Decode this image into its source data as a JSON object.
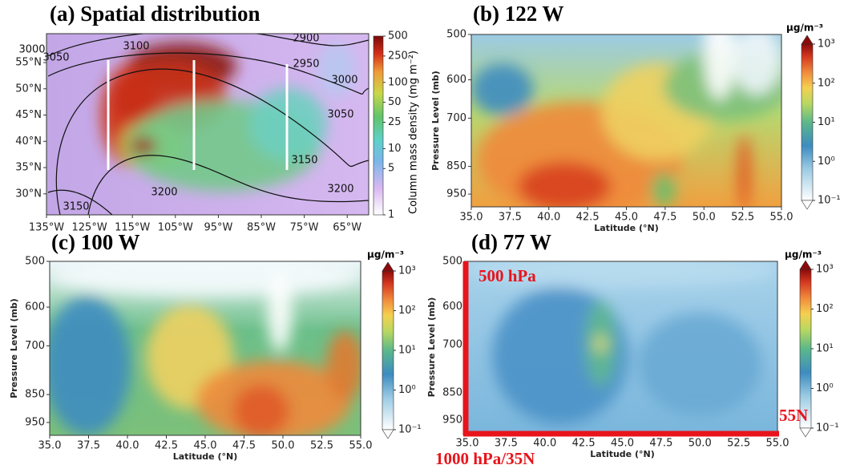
{
  "chart_data": [
    {
      "type": "map",
      "title": "(a) Spatial distribution",
      "xlim": [
        -135,
        -60
      ],
      "ylim": [
        26,
        60.5
      ],
      "xticks": [
        {
          "value": -135,
          "label": "135°W"
        },
        {
          "value": -125,
          "label": "125°W"
        },
        {
          "value": -115,
          "label": "115°W"
        },
        {
          "value": -105,
          "label": "105°W"
        },
        {
          "value": -95,
          "label": "95°W"
        },
        {
          "value": -85,
          "label": "85°W"
        },
        {
          "value": -75,
          "label": "75°W"
        },
        {
          "value": -65,
          "label": "65°W"
        }
      ],
      "yticks": [
        {
          "value": 30,
          "label": "30°N"
        },
        {
          "value": 35,
          "label": "35°N"
        },
        {
          "value": 40,
          "label": "40°N"
        },
        {
          "value": 45,
          "label": "45°N"
        },
        {
          "value": 50,
          "label": "50°N"
        },
        {
          "value": 55,
          "label": "55°N"
        }
      ],
      "colorbar": {
        "label": "Column mass density (mg m⁻²)",
        "lim": [
          1,
          500
        ],
        "log": true,
        "ticks": [
          1,
          5,
          10,
          25,
          50,
          100,
          250,
          500
        ]
      },
      "contour_labels": [
        "3100",
        "2900",
        "3000",
        "3050",
        "2950",
        "3000",
        "3050",
        "3150",
        "3200",
        "3150",
        "3200"
      ]
    },
    {
      "type": "contour",
      "title": "(b) 122 W",
      "xlabel": "Latitude (°N)",
      "ylabel": "Pressure Level (mb)",
      "xlim": [
        35,
        55
      ],
      "ylim": [
        500,
        1000
      ],
      "ylog": true,
      "xticks": [
        {
          "value": 35,
          "label": "35.0"
        },
        {
          "value": 37.5,
          "label": "37.5"
        },
        {
          "value": 40,
          "label": "40.0"
        },
        {
          "value": 42.5,
          "label": "42.5"
        },
        {
          "value": 45,
          "label": "45.0"
        },
        {
          "value": 47.5,
          "label": "47.5"
        },
        {
          "value": 50,
          "label": "50.0"
        },
        {
          "value": 52.5,
          "label": "52.5"
        },
        {
          "value": 55,
          "label": "55.0"
        }
      ],
      "yticks": [
        500,
        600,
        700,
        850,
        950
      ],
      "colorbar": {
        "unit": "μg/m⁻³",
        "lim": [
          0.1,
          1000
        ],
        "log": true,
        "ticks": [
          {
            "value": 1000,
            "label": "10³"
          },
          {
            "value": 100,
            "label": "10²"
          },
          {
            "value": 10,
            "label": "10¹"
          },
          {
            "value": 1,
            "label": "10⁰"
          },
          {
            "value": 0.1,
            "label": "10⁻¹"
          }
        ]
      }
    },
    {
      "type": "contour",
      "title": "(c) 100 W",
      "xlabel": "Latitude (°N)",
      "ylabel": "Pressure Level (mb)",
      "xlim": [
        35,
        55
      ],
      "ylim": [
        500,
        1000
      ],
      "ylog": true,
      "xticks": [
        {
          "value": 35,
          "label": "35.0"
        },
        {
          "value": 37.5,
          "label": "37.5"
        },
        {
          "value": 40,
          "label": "40.0"
        },
        {
          "value": 42.5,
          "label": "42.5"
        },
        {
          "value": 45,
          "label": "45.0"
        },
        {
          "value": 47.5,
          "label": "47.5"
        },
        {
          "value": 50,
          "label": "50.0"
        },
        {
          "value": 52.5,
          "label": "52.5"
        },
        {
          "value": 55,
          "label": "55.0"
        }
      ],
      "yticks": [
        500,
        600,
        700,
        850,
        950
      ],
      "colorbar": {
        "unit": "μg/m⁻³",
        "lim": [
          0.1,
          1000
        ],
        "log": true,
        "ticks": [
          {
            "value": 1000,
            "label": "10³"
          },
          {
            "value": 100,
            "label": "10²"
          },
          {
            "value": 10,
            "label": "10¹"
          },
          {
            "value": 1,
            "label": "10⁰"
          },
          {
            "value": 0.1,
            "label": "10⁻¹"
          }
        ]
      }
    },
    {
      "type": "contour",
      "title": "(d) 77 W",
      "xlabel": "Latitude (°N)",
      "ylabel": "Pressure Level (mb)",
      "xlim": [
        35,
        55
      ],
      "ylim": [
        500,
        1000
      ],
      "ylog": true,
      "xticks": [
        {
          "value": 35,
          "label": "35.0"
        },
        {
          "value": 37.5,
          "label": "37.5"
        },
        {
          "value": 40,
          "label": "40.0"
        },
        {
          "value": 42.5,
          "label": "42.5"
        },
        {
          "value": 45,
          "label": "45.0"
        },
        {
          "value": 47.5,
          "label": "47.5"
        },
        {
          "value": 50,
          "label": "50.0"
        },
        {
          "value": 52.5,
          "label": "52.5"
        },
        {
          "value": 55,
          "label": "55.0"
        }
      ],
      "yticks": [
        500,
        600,
        700,
        850,
        950
      ],
      "colorbar": {
        "unit": "μg/m⁻³",
        "lim": [
          0.1,
          1000
        ],
        "log": true,
        "ticks": [
          {
            "value": 1000,
            "label": "10³"
          },
          {
            "value": 100,
            "label": "10²"
          },
          {
            "value": 10,
            "label": "10¹"
          },
          {
            "value": 1,
            "label": "10⁰"
          },
          {
            "value": 0.1,
            "label": "10⁻¹"
          }
        ]
      },
      "annotations": [
        "500 hPa",
        "55N",
        "1000 hPa/35N"
      ]
    }
  ]
}
